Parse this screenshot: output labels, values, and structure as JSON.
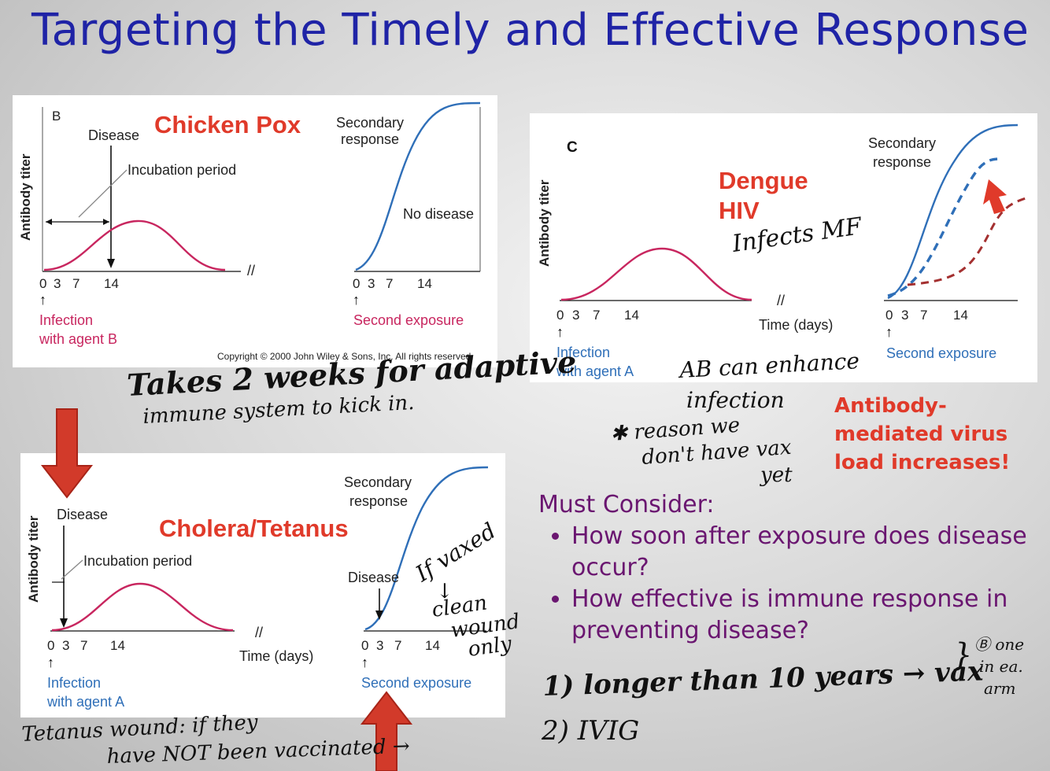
{
  "title": "Targeting the Timely and Effective Response",
  "panelB": {
    "letter": "B",
    "disease_label": "Chicken Pox",
    "y_label": "Antibody titer",
    "disease": "Disease",
    "incubation": "Incubation period",
    "secondary_line1": "Secondary",
    "secondary_line2": "response",
    "no_disease": "No disease",
    "ticks": [
      "0",
      "3",
      "7",
      "14"
    ],
    "ticks2": [
      "0",
      "3",
      "7",
      "14"
    ],
    "infection_line1": "Infection",
    "infection_line2": "with agent B",
    "second_exposure": "Second exposure",
    "copyright": "Copyright © 2000 John Wiley & Sons, Inc.  All rights reserved."
  },
  "panelC": {
    "letter": "C",
    "disease_line1": "Dengue",
    "disease_line2": "HIV",
    "y_label": "Antibody titer",
    "secondary_line1": "Secondary",
    "secondary_line2": "response",
    "time": "Time (days)",
    "ticks": [
      "0",
      "3",
      "7",
      "14"
    ],
    "ticks2": [
      "0",
      "3",
      "7",
      "14"
    ],
    "infection_line1": "Infection",
    "infection_line2": "with agent A",
    "second_exposure": "Second exposure"
  },
  "panelA": {
    "disease_label": "Cholera/Tetanus",
    "y_label": "Antibody titer",
    "disease": "Disease",
    "disease2": "Disease",
    "incubation": "Incubation period",
    "secondary_line1": "Secondary",
    "secondary_line2": "response",
    "time": "Time (days)",
    "ticks": [
      "0",
      "3",
      "7",
      "14"
    ],
    "ticks2": [
      "0",
      "3",
      "7",
      "14"
    ],
    "infection_line1": "Infection",
    "infection_line2": "with agent A",
    "second_exposure": "Second exposure"
  },
  "red_note": [
    "Antibody-",
    "mediated virus",
    "load increases!"
  ],
  "consider": {
    "heading": "Must Consider:",
    "bullets": [
      "How soon after exposure does disease occur?",
      "How effective is immune response in preventing disease?"
    ]
  },
  "handwriting": {
    "takes_line1": "Takes 2 weeks for adaptive",
    "takes_line2": "immune system to kick in.",
    "infects": "Infects MF",
    "ab_line1": "AB can enhance",
    "ab_line2": "infection",
    "reason_line1": "✱ reason we",
    "reason_line2": "don't have vax",
    "reason_line3": "yet",
    "if_vaxed": "If vaxed",
    "clean_line1": "clean",
    "clean_line2": "wound",
    "clean_line3": "only",
    "step1": "1) longer than 10 years → vax",
    "step2": "2) IVIG",
    "b_note_line1": "Ⓑ one",
    "b_note_line2": "in ea.",
    "b_note_line3": "arm",
    "tetanus_line1": "Tetanus wound: if they",
    "tetanus_line2": "have NOT been vaccinated →"
  },
  "colors": {
    "title": "#1f23a6",
    "primary_curve": "#c8265f",
    "secondary_curve": "#2f6fb8",
    "label_red": "#e03a2a",
    "label_blue": "#2f6fb8",
    "consider_text": "#6a1670",
    "arrow_red": "#d23a2a"
  }
}
